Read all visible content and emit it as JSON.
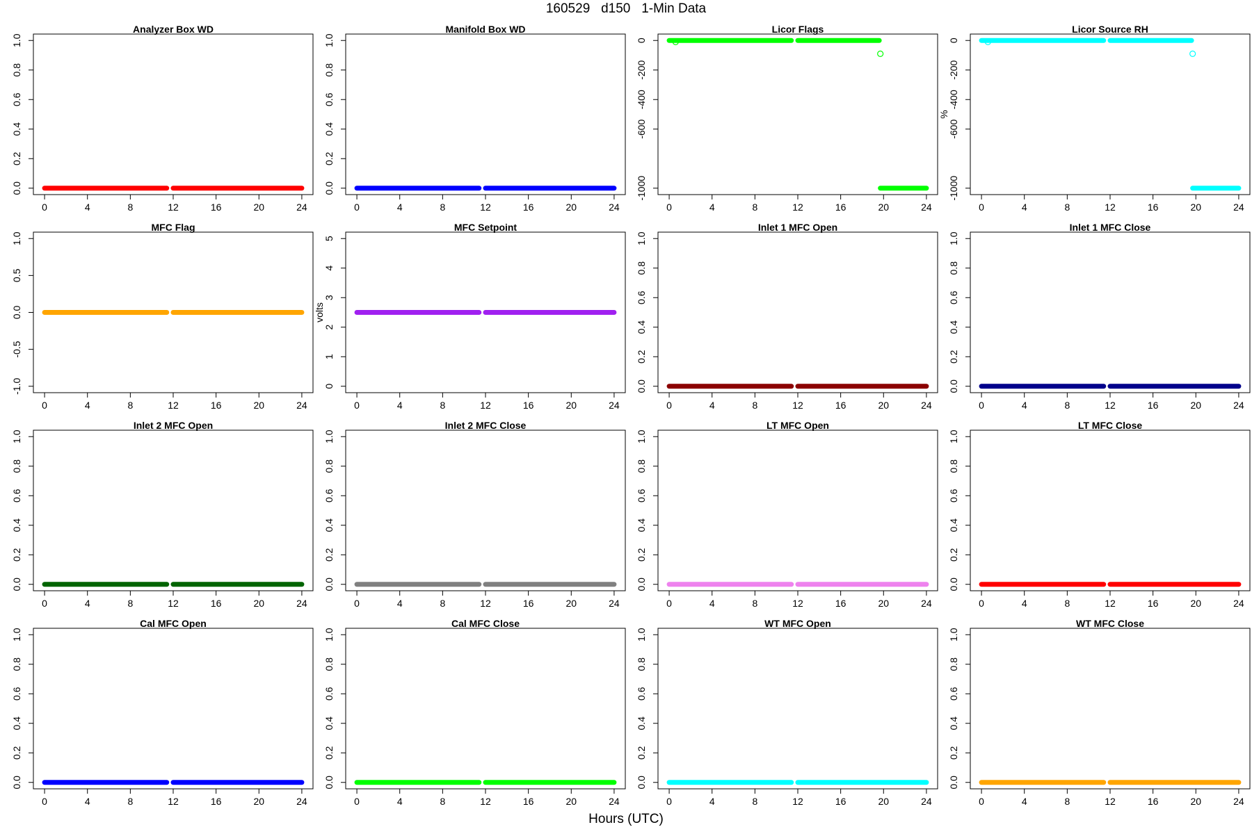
{
  "figure": {
    "title": "160529   d150   1-Min Data",
    "xlabel": "Hours (UTC)"
  },
  "chart_data": [
    {
      "type": "scatter",
      "title": "Analyzer Box WD",
      "ylabel": "",
      "color": "#ff0000",
      "xlim": [
        0,
        24
      ],
      "ylim": [
        0,
        1
      ],
      "xticks": [
        0,
        4,
        8,
        12,
        16,
        20,
        24
      ],
      "yticks": [
        "0.0",
        "0.2",
        "0.4",
        "0.6",
        "0.8",
        "1.0"
      ],
      "ytick_values": [
        0,
        0.2,
        0.4,
        0.6,
        0.8,
        1.0
      ],
      "segments": [
        {
          "x": [
            0,
            11.4
          ],
          "y": 0
        },
        {
          "x": [
            12,
            24
          ],
          "y": 0
        }
      ],
      "points": []
    },
    {
      "type": "scatter",
      "title": "Manifold Box WD",
      "ylabel": "",
      "color": "#0000ff",
      "xlim": [
        0,
        24
      ],
      "ylim": [
        0,
        1
      ],
      "xticks": [
        0,
        4,
        8,
        12,
        16,
        20,
        24
      ],
      "yticks": [
        "0.0",
        "0.2",
        "0.4",
        "0.6",
        "0.8",
        "1.0"
      ],
      "ytick_values": [
        0,
        0.2,
        0.4,
        0.6,
        0.8,
        1.0
      ],
      "segments": [
        {
          "x": [
            0,
            11.4
          ],
          "y": 0
        },
        {
          "x": [
            12,
            24
          ],
          "y": 0
        }
      ],
      "points": []
    },
    {
      "type": "scatter",
      "title": "Licor Flags",
      "ylabel": "",
      "color": "#00ff00",
      "xlim": [
        0,
        24
      ],
      "ylim": [
        -1000,
        0
      ],
      "xticks": [
        0,
        4,
        8,
        12,
        16,
        20,
        24
      ],
      "yticks": [
        "0",
        "-200",
        "-400",
        "-600",
        "-1000"
      ],
      "ytick_values": [
        0,
        -200,
        -400,
        -600,
        -1000
      ],
      "segments": [
        {
          "x": [
            0,
            11.4
          ],
          "y": 0
        },
        {
          "x": [
            12,
            19.6
          ],
          "y": 0
        },
        {
          "x": [
            19.7,
            24
          ],
          "y": -1000
        }
      ],
      "points": [
        {
          "x": 0.6,
          "y": -10
        },
        {
          "x": 19.7,
          "y": -90
        }
      ]
    },
    {
      "type": "scatter",
      "title": "Licor Source RH",
      "ylabel": "%",
      "color": "#00ffff",
      "xlim": [
        0,
        24
      ],
      "ylim": [
        -1000,
        0
      ],
      "xticks": [
        0,
        4,
        8,
        12,
        16,
        20,
        24
      ],
      "yticks": [
        "0",
        "-200",
        "-400",
        "-600",
        "-1000"
      ],
      "ytick_values": [
        0,
        -200,
        -400,
        -600,
        -1000
      ],
      "segments": [
        {
          "x": [
            0,
            11.4
          ],
          "y": 0
        },
        {
          "x": [
            12,
            19.6
          ],
          "y": 0
        },
        {
          "x": [
            19.7,
            24
          ],
          "y": -1000
        }
      ],
      "points": [
        {
          "x": 0.6,
          "y": -10
        },
        {
          "x": 19.7,
          "y": -90
        }
      ]
    },
    {
      "type": "scatter",
      "title": "MFC Flag",
      "ylabel": "",
      "color": "#ffa500",
      "xlim": [
        0,
        24
      ],
      "ylim": [
        -1,
        1
      ],
      "xticks": [
        0,
        4,
        8,
        12,
        16,
        20,
        24
      ],
      "yticks": [
        "-1.0",
        "-0.5",
        "0.0",
        "0.5",
        "1.0"
      ],
      "ytick_values": [
        -1,
        -0.5,
        0,
        0.5,
        1
      ],
      "segments": [
        {
          "x": [
            0,
            11.4
          ],
          "y": 0
        },
        {
          "x": [
            12,
            24
          ],
          "y": 0
        }
      ],
      "points": []
    },
    {
      "type": "scatter",
      "title": "MFC Setpoint",
      "ylabel": "volts",
      "color": "#a020f0",
      "xlim": [
        0,
        24
      ],
      "ylim": [
        0,
        5
      ],
      "xticks": [
        0,
        4,
        8,
        12,
        16,
        20,
        24
      ],
      "yticks": [
        "0",
        "1",
        "2",
        "3",
        "4",
        "5"
      ],
      "ytick_values": [
        0,
        1,
        2,
        3,
        4,
        5
      ],
      "segments": [
        {
          "x": [
            0,
            11.4
          ],
          "y": 2.5
        },
        {
          "x": [
            12,
            24
          ],
          "y": 2.5
        }
      ],
      "points": []
    },
    {
      "type": "scatter",
      "title": "Inlet 1 MFC Open",
      "ylabel": "",
      "color": "#8b0000",
      "xlim": [
        0,
        24
      ],
      "ylim": [
        0,
        1
      ],
      "xticks": [
        0,
        4,
        8,
        12,
        16,
        20,
        24
      ],
      "yticks": [
        "0.0",
        "0.2",
        "0.4",
        "0.6",
        "0.8",
        "1.0"
      ],
      "ytick_values": [
        0,
        0.2,
        0.4,
        0.6,
        0.8,
        1.0
      ],
      "segments": [
        {
          "x": [
            0,
            11.4
          ],
          "y": 0
        },
        {
          "x": [
            12,
            24
          ],
          "y": 0
        }
      ],
      "points": []
    },
    {
      "type": "scatter",
      "title": "Inlet 1 MFC Close",
      "ylabel": "",
      "color": "#00008b",
      "xlim": [
        0,
        24
      ],
      "ylim": [
        0,
        1
      ],
      "xticks": [
        0,
        4,
        8,
        12,
        16,
        20,
        24
      ],
      "yticks": [
        "0.0",
        "0.2",
        "0.4",
        "0.6",
        "0.8",
        "1.0"
      ],
      "ytick_values": [
        0,
        0.2,
        0.4,
        0.6,
        0.8,
        1.0
      ],
      "segments": [
        {
          "x": [
            0,
            11.4
          ],
          "y": 0
        },
        {
          "x": [
            12,
            24
          ],
          "y": 0
        }
      ],
      "points": []
    },
    {
      "type": "scatter",
      "title": "Inlet 2 MFC Open",
      "ylabel": "",
      "color": "#006400",
      "xlim": [
        0,
        24
      ],
      "ylim": [
        0,
        1
      ],
      "xticks": [
        0,
        4,
        8,
        12,
        16,
        20,
        24
      ],
      "yticks": [
        "0.0",
        "0.2",
        "0.4",
        "0.6",
        "0.8",
        "1.0"
      ],
      "ytick_values": [
        0,
        0.2,
        0.4,
        0.6,
        0.8,
        1.0
      ],
      "segments": [
        {
          "x": [
            0,
            11.4
          ],
          "y": 0
        },
        {
          "x": [
            12,
            24
          ],
          "y": 0
        }
      ],
      "points": []
    },
    {
      "type": "scatter",
      "title": "Inlet 2 MFC Close",
      "ylabel": "",
      "color": "#808080",
      "xlim": [
        0,
        24
      ],
      "ylim": [
        0,
        1
      ],
      "xticks": [
        0,
        4,
        8,
        12,
        16,
        20,
        24
      ],
      "yticks": [
        "0.0",
        "0.2",
        "0.4",
        "0.6",
        "0.8",
        "1.0"
      ],
      "ytick_values": [
        0,
        0.2,
        0.4,
        0.6,
        0.8,
        1.0
      ],
      "segments": [
        {
          "x": [
            0,
            11.4
          ],
          "y": 0
        },
        {
          "x": [
            12,
            24
          ],
          "y": 0
        }
      ],
      "points": []
    },
    {
      "type": "scatter",
      "title": "LT MFC Open",
      "ylabel": "",
      "color": "#ee82ee",
      "xlim": [
        0,
        24
      ],
      "ylim": [
        0,
        1
      ],
      "xticks": [
        0,
        4,
        8,
        12,
        16,
        20,
        24
      ],
      "yticks": [
        "0.0",
        "0.2",
        "0.4",
        "0.6",
        "0.8",
        "1.0"
      ],
      "ytick_values": [
        0,
        0.2,
        0.4,
        0.6,
        0.8,
        1.0
      ],
      "segments": [
        {
          "x": [
            0,
            11.4
          ],
          "y": 0
        },
        {
          "x": [
            12,
            24
          ],
          "y": 0
        }
      ],
      "points": []
    },
    {
      "type": "scatter",
      "title": "LT MFC Close",
      "ylabel": "",
      "color": "#ff0000",
      "xlim": [
        0,
        24
      ],
      "ylim": [
        0,
        1
      ],
      "xticks": [
        0,
        4,
        8,
        12,
        16,
        20,
        24
      ],
      "yticks": [
        "0.0",
        "0.2",
        "0.4",
        "0.6",
        "0.8",
        "1.0"
      ],
      "ytick_values": [
        0,
        0.2,
        0.4,
        0.6,
        0.8,
        1.0
      ],
      "segments": [
        {
          "x": [
            0,
            11.4
          ],
          "y": 0
        },
        {
          "x": [
            12,
            24
          ],
          "y": 0
        }
      ],
      "points": []
    },
    {
      "type": "scatter",
      "title": "Cal MFC Open",
      "ylabel": "",
      "color": "#0000ff",
      "xlim": [
        0,
        24
      ],
      "ylim": [
        0,
        1
      ],
      "xticks": [
        0,
        4,
        8,
        12,
        16,
        20,
        24
      ],
      "yticks": [
        "0.0",
        "0.2",
        "0.4",
        "0.6",
        "0.8",
        "1.0"
      ],
      "ytick_values": [
        0,
        0.2,
        0.4,
        0.6,
        0.8,
        1.0
      ],
      "segments": [
        {
          "x": [
            0,
            11.4
          ],
          "y": 0
        },
        {
          "x": [
            12,
            24
          ],
          "y": 0
        }
      ],
      "points": []
    },
    {
      "type": "scatter",
      "title": "Cal MFC Close",
      "ylabel": "",
      "color": "#00ff00",
      "xlim": [
        0,
        24
      ],
      "ylim": [
        0,
        1
      ],
      "xticks": [
        0,
        4,
        8,
        12,
        16,
        20,
        24
      ],
      "yticks": [
        "0.0",
        "0.2",
        "0.4",
        "0.6",
        "0.8",
        "1.0"
      ],
      "ytick_values": [
        0,
        0.2,
        0.4,
        0.6,
        0.8,
        1.0
      ],
      "segments": [
        {
          "x": [
            0,
            11.4
          ],
          "y": 0
        },
        {
          "x": [
            12,
            24
          ],
          "y": 0
        }
      ],
      "points": []
    },
    {
      "type": "scatter",
      "title": "WT MFC Open",
      "ylabel": "",
      "color": "#00ffff",
      "xlim": [
        0,
        24
      ],
      "ylim": [
        0,
        1
      ],
      "xticks": [
        0,
        4,
        8,
        12,
        16,
        20,
        24
      ],
      "yticks": [
        "0.0",
        "0.2",
        "0.4",
        "0.6",
        "0.8",
        "1.0"
      ],
      "ytick_values": [
        0,
        0.2,
        0.4,
        0.6,
        0.8,
        1.0
      ],
      "segments": [
        {
          "x": [
            0,
            11.4
          ],
          "y": 0
        },
        {
          "x": [
            12,
            24
          ],
          "y": 0
        }
      ],
      "points": []
    },
    {
      "type": "scatter",
      "title": "WT MFC Close",
      "ylabel": "",
      "color": "#ffa500",
      "xlim": [
        0,
        24
      ],
      "ylim": [
        0,
        1
      ],
      "xticks": [
        0,
        4,
        8,
        12,
        16,
        20,
        24
      ],
      "yticks": [
        "0.0",
        "0.2",
        "0.4",
        "0.6",
        "0.8",
        "1.0"
      ],
      "ytick_values": [
        0,
        0.2,
        0.4,
        0.6,
        0.8,
        1.0
      ],
      "segments": [
        {
          "x": [
            0,
            11.4
          ],
          "y": 0
        },
        {
          "x": [
            12,
            24
          ],
          "y": 0
        }
      ],
      "points": []
    }
  ]
}
